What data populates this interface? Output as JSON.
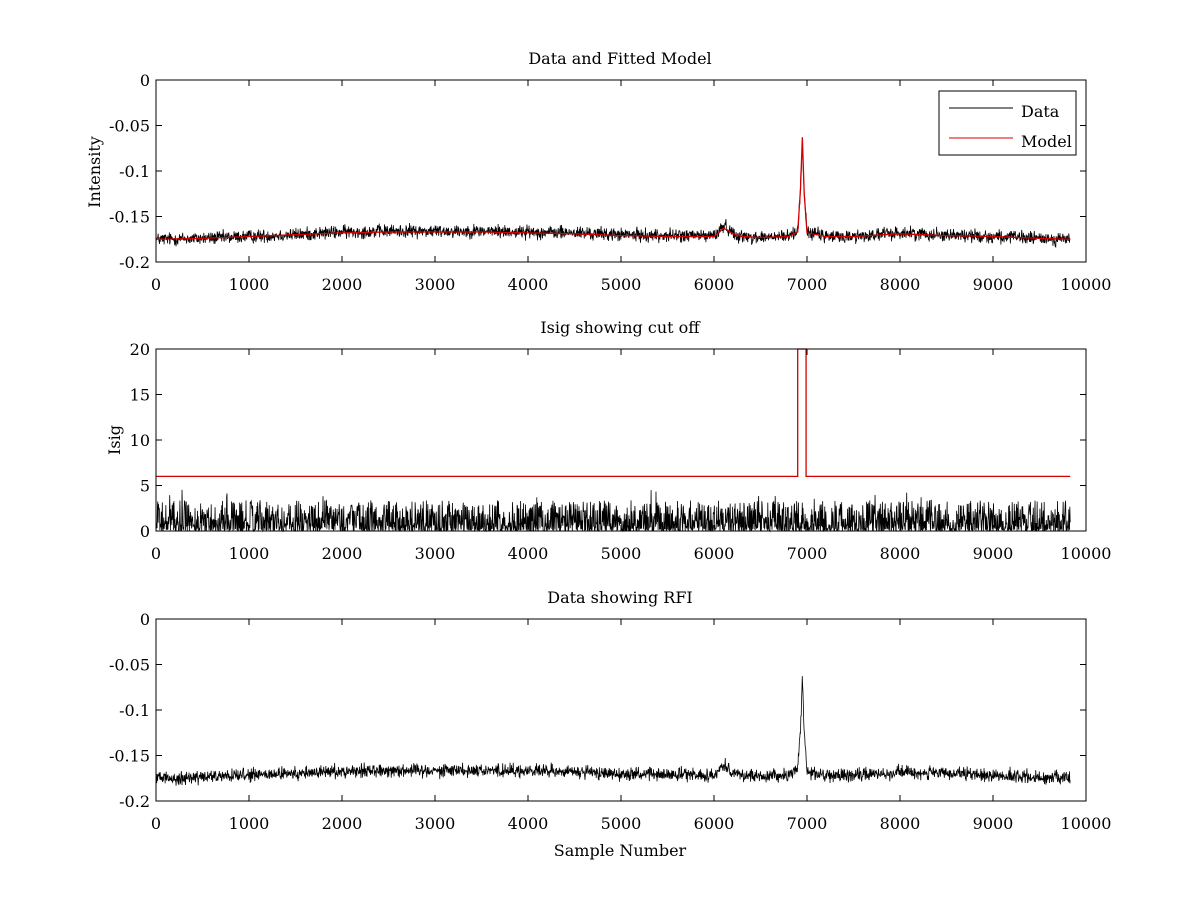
{
  "chart_data": [
    {
      "type": "line",
      "title": "Data and Fitted Model",
      "xlabel": "",
      "ylabel": "Intensity",
      "xlim": [
        0,
        10000
      ],
      "ylim": [
        -0.2,
        0
      ],
      "xticks": [
        0,
        1000,
        2000,
        3000,
        4000,
        5000,
        6000,
        7000,
        8000,
        9000,
        10000
      ],
      "xtick_labels": [
        "0",
        "1000",
        "2000",
        "3000",
        "4000",
        "5000",
        "6000",
        "7000",
        "8000",
        "9000",
        "10000"
      ],
      "yticks": [
        0,
        -0.05,
        -0.1,
        -0.15,
        -0.2
      ],
      "ytick_labels": [
        "0",
        "-0.05",
        "-0.1",
        "-0.15",
        "-0.2"
      ],
      "grid": false,
      "legend": "top-right",
      "series": [
        {
          "name": "Data",
          "color": "#000000",
          "noise_amplitude": 0.009,
          "x": [
            0,
            500,
            1000,
            1500,
            2000,
            2500,
            3000,
            3500,
            4000,
            4500,
            5000,
            5500,
            6000,
            6050,
            6100,
            6150,
            6200,
            6300,
            6500,
            6800,
            6900,
            6930,
            6950,
            6970,
            7000,
            7200,
            7500,
            8000,
            8500,
            9000,
            9500,
            9830
          ],
          "y": [
            -0.175,
            -0.174,
            -0.172,
            -0.17,
            -0.167,
            -0.166,
            -0.166,
            -0.166,
            -0.167,
            -0.168,
            -0.17,
            -0.171,
            -0.171,
            -0.167,
            -0.16,
            -0.163,
            -0.168,
            -0.172,
            -0.173,
            -0.172,
            -0.165,
            -0.12,
            -0.063,
            -0.125,
            -0.167,
            -0.172,
            -0.172,
            -0.168,
            -0.17,
            -0.172,
            -0.174,
            -0.175
          ]
        },
        {
          "name": "Model",
          "color": "#d40000",
          "x": [
            0,
            500,
            1000,
            1500,
            2000,
            2500,
            3000,
            3500,
            4000,
            4500,
            5000,
            5500,
            6000,
            6050,
            6100,
            6150,
            6200,
            6300,
            6500,
            6800,
            6900,
            6930,
            6950,
            6970,
            7000,
            7200,
            7500,
            8000,
            8500,
            9000,
            9500,
            9830
          ],
          "y": [
            -0.175,
            -0.174,
            -0.172,
            -0.17,
            -0.168,
            -0.167,
            -0.167,
            -0.167,
            -0.168,
            -0.169,
            -0.171,
            -0.172,
            -0.172,
            -0.168,
            -0.163,
            -0.165,
            -0.169,
            -0.172,
            -0.173,
            -0.172,
            -0.167,
            -0.12,
            -0.063,
            -0.125,
            -0.168,
            -0.172,
            -0.172,
            -0.169,
            -0.171,
            -0.172,
            -0.174,
            -0.175
          ]
        }
      ]
    },
    {
      "type": "line",
      "title": "Isig showing cut off",
      "xlabel": "",
      "ylabel": "Isig",
      "xlim": [
        0,
        10000
      ],
      "ylim": [
        0,
        20
      ],
      "xticks": [
        0,
        1000,
        2000,
        3000,
        4000,
        5000,
        6000,
        7000,
        8000,
        9000,
        10000
      ],
      "xtick_labels": [
        "0",
        "1000",
        "2000",
        "3000",
        "4000",
        "5000",
        "6000",
        "7000",
        "8000",
        "9000",
        "10000"
      ],
      "yticks": [
        0,
        5,
        10,
        15,
        20
      ],
      "ytick_labels": [
        "0",
        "5",
        "10",
        "15",
        "20"
      ],
      "grid": false,
      "series": [
        {
          "color": "#000000",
          "noise_amplitude": 2.6,
          "x": [
            0,
            9830
          ],
          "y": [
            0,
            0
          ]
        },
        {
          "color": "#d40000",
          "x": [
            0,
            6900,
            6900,
            6990,
            6990,
            9830
          ],
          "y": [
            6,
            6,
            20,
            20,
            6,
            6
          ]
        }
      ]
    },
    {
      "type": "line",
      "title": "Data showing RFI",
      "xlabel": "Sample Number",
      "ylabel": "",
      "xlim": [
        0,
        10000
      ],
      "ylim": [
        -0.2,
        0
      ],
      "xticks": [
        0,
        1000,
        2000,
        3000,
        4000,
        5000,
        6000,
        7000,
        8000,
        9000,
        10000
      ],
      "xtick_labels": [
        "0",
        "1000",
        "2000",
        "3000",
        "4000",
        "5000",
        "6000",
        "7000",
        "8000",
        "9000",
        "10000"
      ],
      "yticks": [
        0,
        -0.05,
        -0.1,
        -0.15,
        -0.2
      ],
      "ytick_labels": [
        "0",
        "-0.05",
        "-0.1",
        "-0.15",
        "-0.2"
      ],
      "grid": false,
      "series": [
        {
          "color": "#000000",
          "noise_amplitude": 0.009,
          "x": [
            0,
            500,
            1000,
            1500,
            2000,
            2500,
            3000,
            3500,
            4000,
            4500,
            5000,
            5500,
            6000,
            6050,
            6100,
            6150,
            6200,
            6300,
            6500,
            6800,
            6900,
            6930,
            6950,
            6970,
            7000,
            7200,
            7500,
            8000,
            8500,
            9000,
            9500,
            9830
          ],
          "y": [
            -0.175,
            -0.174,
            -0.172,
            -0.17,
            -0.167,
            -0.166,
            -0.166,
            -0.166,
            -0.167,
            -0.168,
            -0.17,
            -0.171,
            -0.171,
            -0.167,
            -0.16,
            -0.163,
            -0.168,
            -0.172,
            -0.173,
            -0.172,
            -0.165,
            -0.12,
            -0.063,
            -0.125,
            -0.167,
            -0.172,
            -0.172,
            -0.168,
            -0.17,
            -0.172,
            -0.174,
            -0.175
          ]
        }
      ]
    }
  ]
}
